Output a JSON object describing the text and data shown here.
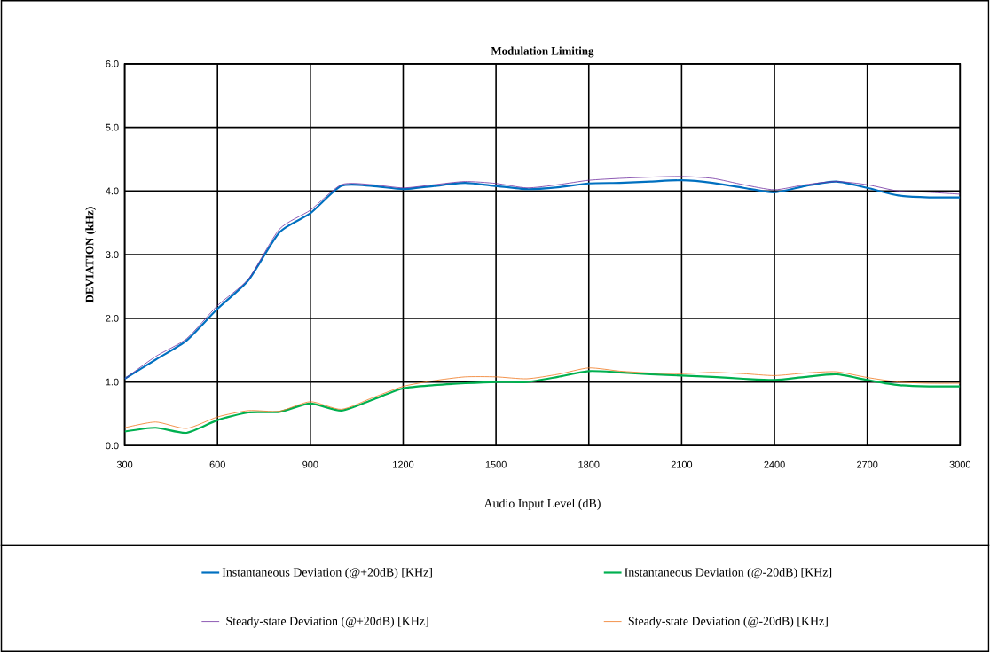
{
  "chart_data": {
    "type": "line",
    "title": "Modulation Limiting",
    "xlabel": "Audio Input Level (dB)",
    "ylabel": "DEVIATION (kHz)",
    "x": [
      300,
      400,
      500,
      600,
      700,
      800,
      900,
      1000,
      1100,
      1200,
      1300,
      1400,
      1500,
      1600,
      1700,
      1800,
      1900,
      2000,
      2100,
      2200,
      2300,
      2400,
      2500,
      2600,
      2700,
      2800,
      2900,
      3000
    ],
    "series": [
      {
        "name": "Instantaneous Deviation (@+20dB) [KHz]",
        "color": "#0070c0",
        "values": [
          1.05,
          1.35,
          1.65,
          2.15,
          2.6,
          3.35,
          3.65,
          4.08,
          4.08,
          4.03,
          4.08,
          4.13,
          4.08,
          4.03,
          4.06,
          4.12,
          4.13,
          4.15,
          4.17,
          4.13,
          4.05,
          3.98,
          4.08,
          4.15,
          4.05,
          3.93,
          3.9,
          3.9
        ]
      },
      {
        "name": "Instantaneous Deviation (@-20dB) [KHz]",
        "color": "#00b050",
        "values": [
          0.22,
          0.28,
          0.2,
          0.4,
          0.52,
          0.53,
          0.66,
          0.55,
          0.72,
          0.9,
          0.95,
          0.98,
          1.0,
          1.0,
          1.08,
          1.17,
          1.15,
          1.12,
          1.1,
          1.08,
          1.05,
          1.03,
          1.08,
          1.12,
          1.03,
          0.95,
          0.93,
          0.93
        ]
      },
      {
        "name": "Steady-state Deviation (@+20dB) [KHz]",
        "color": "#7030a0",
        "values": [
          1.05,
          1.4,
          1.68,
          2.2,
          2.62,
          3.4,
          3.7,
          4.1,
          4.1,
          4.05,
          4.1,
          4.15,
          4.12,
          4.05,
          4.1,
          4.17,
          4.2,
          4.22,
          4.23,
          4.2,
          4.1,
          4.02,
          4.1,
          4.15,
          4.1,
          4.0,
          3.98,
          3.95
        ]
      },
      {
        "name": "Steady-state Deviation (@-20dB) [KHz]",
        "color": "#f07820",
        "values": [
          0.28,
          0.37,
          0.27,
          0.45,
          0.55,
          0.54,
          0.69,
          0.57,
          0.75,
          0.93,
          1.02,
          1.08,
          1.08,
          1.05,
          1.12,
          1.22,
          1.17,
          1.14,
          1.13,
          1.15,
          1.13,
          1.1,
          1.14,
          1.16,
          1.07,
          1.0,
          0.98,
          0.98
        ]
      }
    ],
    "xlim": [
      300,
      3000
    ],
    "ylim": [
      0,
      6
    ],
    "xticks": [
      300,
      600,
      900,
      1200,
      1500,
      1800,
      2100,
      2400,
      2700,
      3000
    ],
    "yticks": [
      {
        "value": 0,
        "label": "0.0"
      },
      {
        "value": 1,
        "label": "1.0"
      },
      {
        "value": 2,
        "label": "2.0"
      },
      {
        "value": 3,
        "label": "3.0"
      },
      {
        "value": 4,
        "label": "4.0"
      },
      {
        "value": 5,
        "label": "5.0"
      },
      {
        "value": 6,
        "label": "6.0"
      }
    ],
    "grid": true,
    "legend": "bottom",
    "marker": "none"
  }
}
